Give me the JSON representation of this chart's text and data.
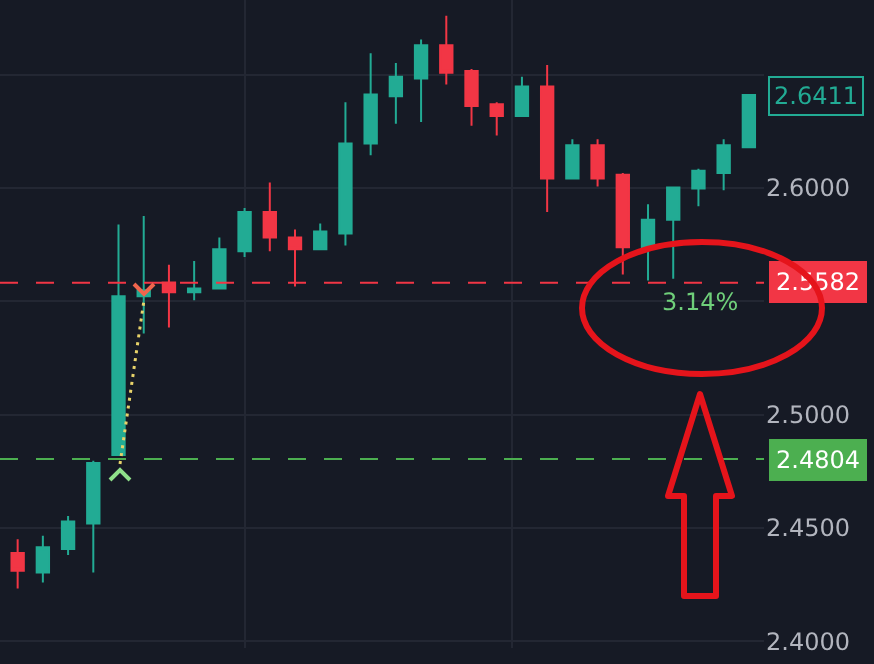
{
  "chart_data": {
    "type": "candlestick",
    "categories": [
      null,
      null,
      null,
      null,
      null,
      null,
      null,
      null,
      null,
      null,
      null,
      null,
      null,
      null,
      null,
      null,
      null,
      null,
      null,
      null,
      null,
      null,
      null,
      null,
      null,
      null,
      null,
      null,
      null,
      null
    ],
    "ohlc": [
      [
        2.4389,
        2.445,
        2.4233,
        2.4311
      ],
      [
        2.4303,
        2.4465,
        2.4259,
        2.4415
      ],
      [
        2.4407,
        2.4553,
        2.438,
        2.4528
      ],
      [
        2.4519,
        2.4796,
        2.4303,
        2.4787
      ],
      [
        2.4822,
        2.5839,
        2.4822,
        2.5523
      ],
      [
        2.5523,
        2.5877,
        2.5358,
        2.5549
      ],
      [
        2.5583,
        2.5661,
        2.5384,
        2.554
      ],
      [
        2.554,
        2.5678,
        2.5505,
        2.5557
      ],
      [
        2.5557,
        2.5782,
        2.5557,
        2.573
      ],
      [
        2.5721,
        2.5912,
        2.5696,
        2.5894
      ],
      [
        2.5894,
        2.6024,
        2.5721,
        2.5782
      ],
      [
        2.5782,
        2.5817,
        2.5566,
        2.573
      ],
      [
        2.573,
        2.5843,
        2.573,
        2.5808
      ],
      [
        2.5799,
        2.6379,
        2.5747,
        2.6197
      ],
      [
        2.6197,
        2.6595,
        2.6145,
        2.6413
      ],
      [
        2.6405,
        2.6552,
        2.6284,
        2.6491
      ],
      [
        2.6483,
        2.6656,
        2.6292,
        2.663
      ],
      [
        2.663,
        2.676,
        2.6457,
        2.6509
      ],
      [
        2.6517,
        2.6526,
        2.6275,
        2.6362
      ],
      [
        2.637,
        2.6379,
        2.6232,
        2.6318
      ],
      [
        2.6318,
        2.6491,
        2.6318,
        2.6448
      ],
      [
        2.6448,
        2.6543,
        2.5894,
        2.6042
      ],
      [
        2.6042,
        2.6215,
        2.6042,
        2.6189
      ],
      [
        2.6189,
        2.6215,
        2.6007,
        2.6042
      ],
      [
        2.6059,
        2.6067,
        2.5618,
        2.5739
      ],
      [
        2.5739,
        2.5929,
        2.5592,
        2.586
      ],
      [
        2.586,
        2.6007,
        2.56,
        2.6002
      ],
      [
        2.5998,
        2.6085,
        2.592,
        2.6076
      ],
      [
        2.6067,
        2.6215,
        2.599,
        2.6189
      ],
      [
        2.618,
        2.6413,
        2.618,
        2.6411
      ]
    ],
    "colors": [
      "#f23645",
      "#22ab94",
      "#22ab94",
      "#22ab94",
      "#22ab94",
      "#22ab94",
      "#f23645",
      "#22ab94",
      "#22ab94",
      "#22ab94",
      "#f23645",
      "#f23645",
      "#22ab94",
      "#22ab94",
      "#22ab94",
      "#22ab94",
      "#22ab94",
      "#f23645",
      "#f23645",
      "#f23645",
      "#22ab94",
      "#f23645",
      "#22ab94",
      "#f23645",
      "#f23645",
      "#22ab94",
      "#22ab94",
      "#22ab94",
      "#22ab94",
      "#22ab94"
    ],
    "ylim": [
      2.397,
      2.683
    ],
    "yticks": [
      {
        "value": 2.4,
        "label": "2.4000"
      },
      {
        "value": 2.45,
        "label": "2.4500"
      },
      {
        "value": 2.5,
        "label": "2.5000"
      },
      {
        "value": 2.55,
        "label": null
      },
      {
        "value": 2.6,
        "label": "2.6000"
      },
      {
        "value": 2.65,
        "label": null
      }
    ],
    "grid": true,
    "ref_lines": [
      {
        "axis": "y",
        "value": 2.5582,
        "label": "2.5582",
        "color": "#f23645",
        "line_style": "dashed"
      },
      {
        "axis": "y",
        "value": 2.4804,
        "label": "2.4804",
        "color": "#4caf50",
        "line_style": "dashed"
      }
    ],
    "annotations": [
      "3.14%",
      "2.6411"
    ]
  }
}
